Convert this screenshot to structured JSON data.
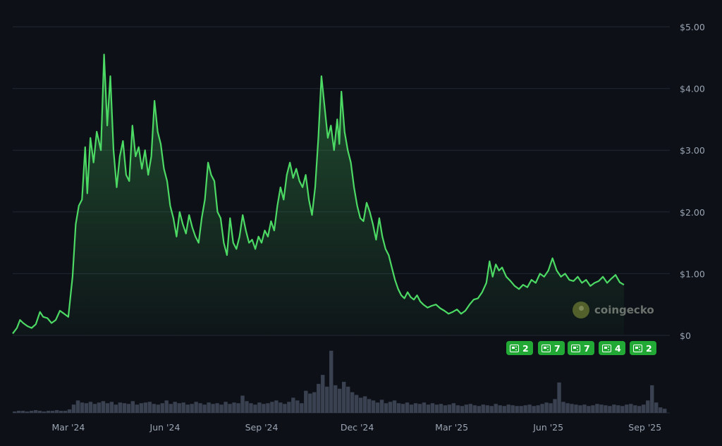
{
  "chart_data": {
    "type": "area",
    "title": "",
    "xlabel": "",
    "ylabel": "",
    "ylim": [
      0,
      5
    ],
    "yticks": [
      {
        "value": 0,
        "label": "$0"
      },
      {
        "value": 1,
        "label": "$1.00"
      },
      {
        "value": 2,
        "label": "$2.00"
      },
      {
        "value": 3,
        "label": "$3.00"
      },
      {
        "value": 4,
        "label": "$4.00"
      },
      {
        "value": 5,
        "label": "$5.00"
      }
    ],
    "xticks": [
      {
        "date": "2024-03-01",
        "label": "Mar '24"
      },
      {
        "date": "2024-06-01",
        "label": "Jun '24"
      },
      {
        "date": "2024-09-01",
        "label": "Sep '24"
      },
      {
        "date": "2024-12-01",
        "label": "Dec '24"
      },
      {
        "date": "2025-03-01",
        "label": "Mar '25"
      },
      {
        "date": "2025-06-01",
        "label": "Jun '25"
      },
      {
        "date": "2025-09-01",
        "label": "Sep '25"
      }
    ],
    "xrange": [
      "2024-01-08",
      "2025-09-22"
    ],
    "grid": true,
    "colors": {
      "line": "#4cd964",
      "volume": "#3a4150",
      "grid": "#212733",
      "badge": "#22a935"
    },
    "series": [
      {
        "points": [
          [
            "2024-01-08",
            0.03
          ],
          [
            "2024-01-12",
            0.12
          ],
          [
            "2024-01-15",
            0.25
          ],
          [
            "2024-01-18",
            0.2
          ],
          [
            "2024-01-22",
            0.15
          ],
          [
            "2024-01-26",
            0.12
          ],
          [
            "2024-01-30",
            0.18
          ],
          [
            "2024-02-03",
            0.38
          ],
          [
            "2024-02-06",
            0.3
          ],
          [
            "2024-02-10",
            0.28
          ],
          [
            "2024-02-14",
            0.2
          ],
          [
            "2024-02-18",
            0.25
          ],
          [
            "2024-02-22",
            0.4
          ],
          [
            "2024-02-26",
            0.35
          ],
          [
            "2024-03-01",
            0.3
          ],
          [
            "2024-03-05",
            0.95
          ],
          [
            "2024-03-08",
            1.8
          ],
          [
            "2024-03-11",
            2.1
          ],
          [
            "2024-03-14",
            2.2
          ],
          [
            "2024-03-17",
            3.05
          ],
          [
            "2024-03-19",
            2.3
          ],
          [
            "2024-03-22",
            3.2
          ],
          [
            "2024-03-25",
            2.8
          ],
          [
            "2024-03-28",
            3.3
          ],
          [
            "2024-04-01",
            3.0
          ],
          [
            "2024-04-04",
            4.55
          ],
          [
            "2024-04-07",
            3.4
          ],
          [
            "2024-04-10",
            4.2
          ],
          [
            "2024-04-13",
            3.0
          ],
          [
            "2024-04-16",
            2.4
          ],
          [
            "2024-04-19",
            2.9
          ],
          [
            "2024-04-22",
            3.15
          ],
          [
            "2024-04-25",
            2.6
          ],
          [
            "2024-04-28",
            2.5
          ],
          [
            "2024-05-01",
            3.4
          ],
          [
            "2024-05-04",
            2.9
          ],
          [
            "2024-05-07",
            3.05
          ],
          [
            "2024-05-10",
            2.7
          ],
          [
            "2024-05-13",
            3.0
          ],
          [
            "2024-05-16",
            2.6
          ],
          [
            "2024-05-19",
            2.9
          ],
          [
            "2024-05-22",
            3.8
          ],
          [
            "2024-05-25",
            3.3
          ],
          [
            "2024-05-28",
            3.1
          ],
          [
            "2024-05-31",
            2.7
          ],
          [
            "2024-06-03",
            2.5
          ],
          [
            "2024-06-06",
            2.1
          ],
          [
            "2024-06-09",
            1.9
          ],
          [
            "2024-06-12",
            1.6
          ],
          [
            "2024-06-15",
            2.0
          ],
          [
            "2024-06-18",
            1.8
          ],
          [
            "2024-06-21",
            1.65
          ],
          [
            "2024-06-24",
            1.95
          ],
          [
            "2024-06-27",
            1.75
          ],
          [
            "2024-06-30",
            1.6
          ],
          [
            "2024-07-03",
            1.5
          ],
          [
            "2024-07-06",
            1.9
          ],
          [
            "2024-07-09",
            2.2
          ],
          [
            "2024-07-12",
            2.8
          ],
          [
            "2024-07-15",
            2.6
          ],
          [
            "2024-07-18",
            2.5
          ],
          [
            "2024-07-21",
            2.0
          ],
          [
            "2024-07-24",
            1.9
          ],
          [
            "2024-07-27",
            1.5
          ],
          [
            "2024-07-30",
            1.3
          ],
          [
            "2024-08-02",
            1.9
          ],
          [
            "2024-08-05",
            1.5
          ],
          [
            "2024-08-08",
            1.4
          ],
          [
            "2024-08-11",
            1.6
          ],
          [
            "2024-08-14",
            1.95
          ],
          [
            "2024-08-17",
            1.7
          ],
          [
            "2024-08-20",
            1.5
          ],
          [
            "2024-08-23",
            1.55
          ],
          [
            "2024-08-26",
            1.4
          ],
          [
            "2024-08-29",
            1.6
          ],
          [
            "2024-09-01",
            1.5
          ],
          [
            "2024-09-04",
            1.7
          ],
          [
            "2024-09-07",
            1.6
          ],
          [
            "2024-09-10",
            1.85
          ],
          [
            "2024-09-13",
            1.7
          ],
          [
            "2024-09-16",
            2.1
          ],
          [
            "2024-09-19",
            2.4
          ],
          [
            "2024-09-22",
            2.2
          ],
          [
            "2024-09-25",
            2.6
          ],
          [
            "2024-09-28",
            2.8
          ],
          [
            "2024-10-01",
            2.55
          ],
          [
            "2024-10-04",
            2.7
          ],
          [
            "2024-10-07",
            2.5
          ],
          [
            "2024-10-10",
            2.4
          ],
          [
            "2024-10-13",
            2.6
          ],
          [
            "2024-10-16",
            2.2
          ],
          [
            "2024-10-19",
            1.95
          ],
          [
            "2024-10-22",
            2.4
          ],
          [
            "2024-10-25",
            3.2
          ],
          [
            "2024-10-28",
            4.2
          ],
          [
            "2024-10-31",
            3.7
          ],
          [
            "2024-11-03",
            3.2
          ],
          [
            "2024-11-06",
            3.4
          ],
          [
            "2024-11-09",
            3.0
          ],
          [
            "2024-11-12",
            3.5
          ],
          [
            "2024-11-14",
            3.1
          ],
          [
            "2024-11-16",
            3.95
          ],
          [
            "2024-11-19",
            3.3
          ],
          [
            "2024-11-22",
            3.0
          ],
          [
            "2024-11-25",
            2.8
          ],
          [
            "2024-11-28",
            2.4
          ],
          [
            "2024-12-01",
            2.1
          ],
          [
            "2024-12-04",
            1.9
          ],
          [
            "2024-12-07",
            1.85
          ],
          [
            "2024-12-10",
            2.15
          ],
          [
            "2024-12-13",
            2.0
          ],
          [
            "2024-12-16",
            1.8
          ],
          [
            "2024-12-19",
            1.55
          ],
          [
            "2024-12-22",
            1.9
          ],
          [
            "2024-12-25",
            1.6
          ],
          [
            "2024-12-28",
            1.4
          ],
          [
            "2024-12-31",
            1.3
          ],
          [
            "2025-01-03",
            1.1
          ],
          [
            "2025-01-06",
            0.9
          ],
          [
            "2025-01-09",
            0.75
          ],
          [
            "2025-01-12",
            0.65
          ],
          [
            "2025-01-15",
            0.6
          ],
          [
            "2025-01-18",
            0.7
          ],
          [
            "2025-01-21",
            0.62
          ],
          [
            "2025-01-24",
            0.58
          ],
          [
            "2025-01-27",
            0.65
          ],
          [
            "2025-01-30",
            0.55
          ],
          [
            "2025-02-02",
            0.5
          ],
          [
            "2025-02-06",
            0.45
          ],
          [
            "2025-02-10",
            0.48
          ],
          [
            "2025-02-14",
            0.5
          ],
          [
            "2025-02-18",
            0.44
          ],
          [
            "2025-02-22",
            0.4
          ],
          [
            "2025-02-26",
            0.35
          ],
          [
            "2025-03-02",
            0.38
          ],
          [
            "2025-03-06",
            0.42
          ],
          [
            "2025-03-10",
            0.35
          ],
          [
            "2025-03-14",
            0.4
          ],
          [
            "2025-03-18",
            0.5
          ],
          [
            "2025-03-22",
            0.58
          ],
          [
            "2025-03-26",
            0.6
          ],
          [
            "2025-03-30",
            0.7
          ],
          [
            "2025-04-03",
            0.85
          ],
          [
            "2025-04-06",
            1.2
          ],
          [
            "2025-04-09",
            0.95
          ],
          [
            "2025-04-12",
            1.15
          ],
          [
            "2025-04-15",
            1.05
          ],
          [
            "2025-04-18",
            1.1
          ],
          [
            "2025-04-22",
            0.95
          ],
          [
            "2025-04-26",
            0.88
          ],
          [
            "2025-04-30",
            0.8
          ],
          [
            "2025-05-04",
            0.75
          ],
          [
            "2025-05-08",
            0.82
          ],
          [
            "2025-05-12",
            0.78
          ],
          [
            "2025-05-16",
            0.9
          ],
          [
            "2025-05-20",
            0.85
          ],
          [
            "2025-05-24",
            1.0
          ],
          [
            "2025-05-28",
            0.95
          ],
          [
            "2025-06-01",
            1.05
          ],
          [
            "2025-06-05",
            1.25
          ],
          [
            "2025-06-09",
            1.05
          ],
          [
            "2025-06-13",
            0.95
          ],
          [
            "2025-06-17",
            1.0
          ],
          [
            "2025-06-21",
            0.9
          ],
          [
            "2025-06-25",
            0.88
          ],
          [
            "2025-06-29",
            0.95
          ],
          [
            "2025-07-03",
            0.85
          ],
          [
            "2025-07-07",
            0.9
          ],
          [
            "2025-07-11",
            0.8
          ],
          [
            "2025-07-15",
            0.85
          ],
          [
            "2025-07-19",
            0.88
          ],
          [
            "2025-07-23",
            0.95
          ],
          [
            "2025-07-27",
            0.85
          ],
          [
            "2025-07-31",
            0.92
          ],
          [
            "2025-08-04",
            0.98
          ],
          [
            "2025-08-08",
            0.86
          ],
          [
            "2025-08-12",
            0.82
          ]
        ]
      }
    ],
    "volume": {
      "values": [
        0.02,
        0.03,
        0.03,
        0.02,
        0.03,
        0.04,
        0.03,
        0.02,
        0.03,
        0.03,
        0.04,
        0.03,
        0.03,
        0.05,
        0.12,
        0.18,
        0.15,
        0.14,
        0.16,
        0.13,
        0.15,
        0.17,
        0.14,
        0.16,
        0.12,
        0.15,
        0.14,
        0.13,
        0.17,
        0.12,
        0.14,
        0.15,
        0.16,
        0.13,
        0.12,
        0.14,
        0.18,
        0.13,
        0.16,
        0.14,
        0.15,
        0.12,
        0.13,
        0.16,
        0.14,
        0.12,
        0.15,
        0.13,
        0.14,
        0.12,
        0.16,
        0.13,
        0.15,
        0.14,
        0.25,
        0.17,
        0.14,
        0.12,
        0.15,
        0.13,
        0.14,
        0.16,
        0.18,
        0.15,
        0.13,
        0.16,
        0.22,
        0.18,
        0.14,
        0.32,
        0.28,
        0.3,
        0.42,
        0.55,
        0.38,
        0.9,
        0.4,
        0.35,
        0.45,
        0.38,
        0.3,
        0.26,
        0.22,
        0.24,
        0.2,
        0.18,
        0.15,
        0.19,
        0.14,
        0.16,
        0.18,
        0.14,
        0.13,
        0.15,
        0.12,
        0.14,
        0.13,
        0.15,
        0.12,
        0.14,
        0.12,
        0.13,
        0.11,
        0.12,
        0.14,
        0.11,
        0.1,
        0.12,
        0.13,
        0.11,
        0.1,
        0.12,
        0.11,
        0.1,
        0.13,
        0.11,
        0.1,
        0.12,
        0.11,
        0.1,
        0.1,
        0.11,
        0.12,
        0.1,
        0.11,
        0.13,
        0.15,
        0.14,
        0.2,
        0.44,
        0.16,
        0.14,
        0.13,
        0.12,
        0.11,
        0.12,
        0.1,
        0.11,
        0.13,
        0.12,
        0.11,
        0.1,
        0.12,
        0.11,
        0.1,
        0.12,
        0.13,
        0.11,
        0.1,
        0.12,
        0.18,
        0.4,
        0.15,
        0.08,
        0.06
      ]
    }
  },
  "news_badges": [
    {
      "count": "2",
      "icon": "newspaper-icon"
    },
    {
      "count": "7",
      "icon": "newspaper-icon"
    },
    {
      "count": "7",
      "icon": "newspaper-icon"
    },
    {
      "count": "4",
      "icon": "newspaper-icon"
    },
    {
      "count": "2",
      "icon": "newspaper-icon"
    }
  ],
  "watermark": {
    "text": "coingecko",
    "icon": "coingecko-logo-icon"
  }
}
